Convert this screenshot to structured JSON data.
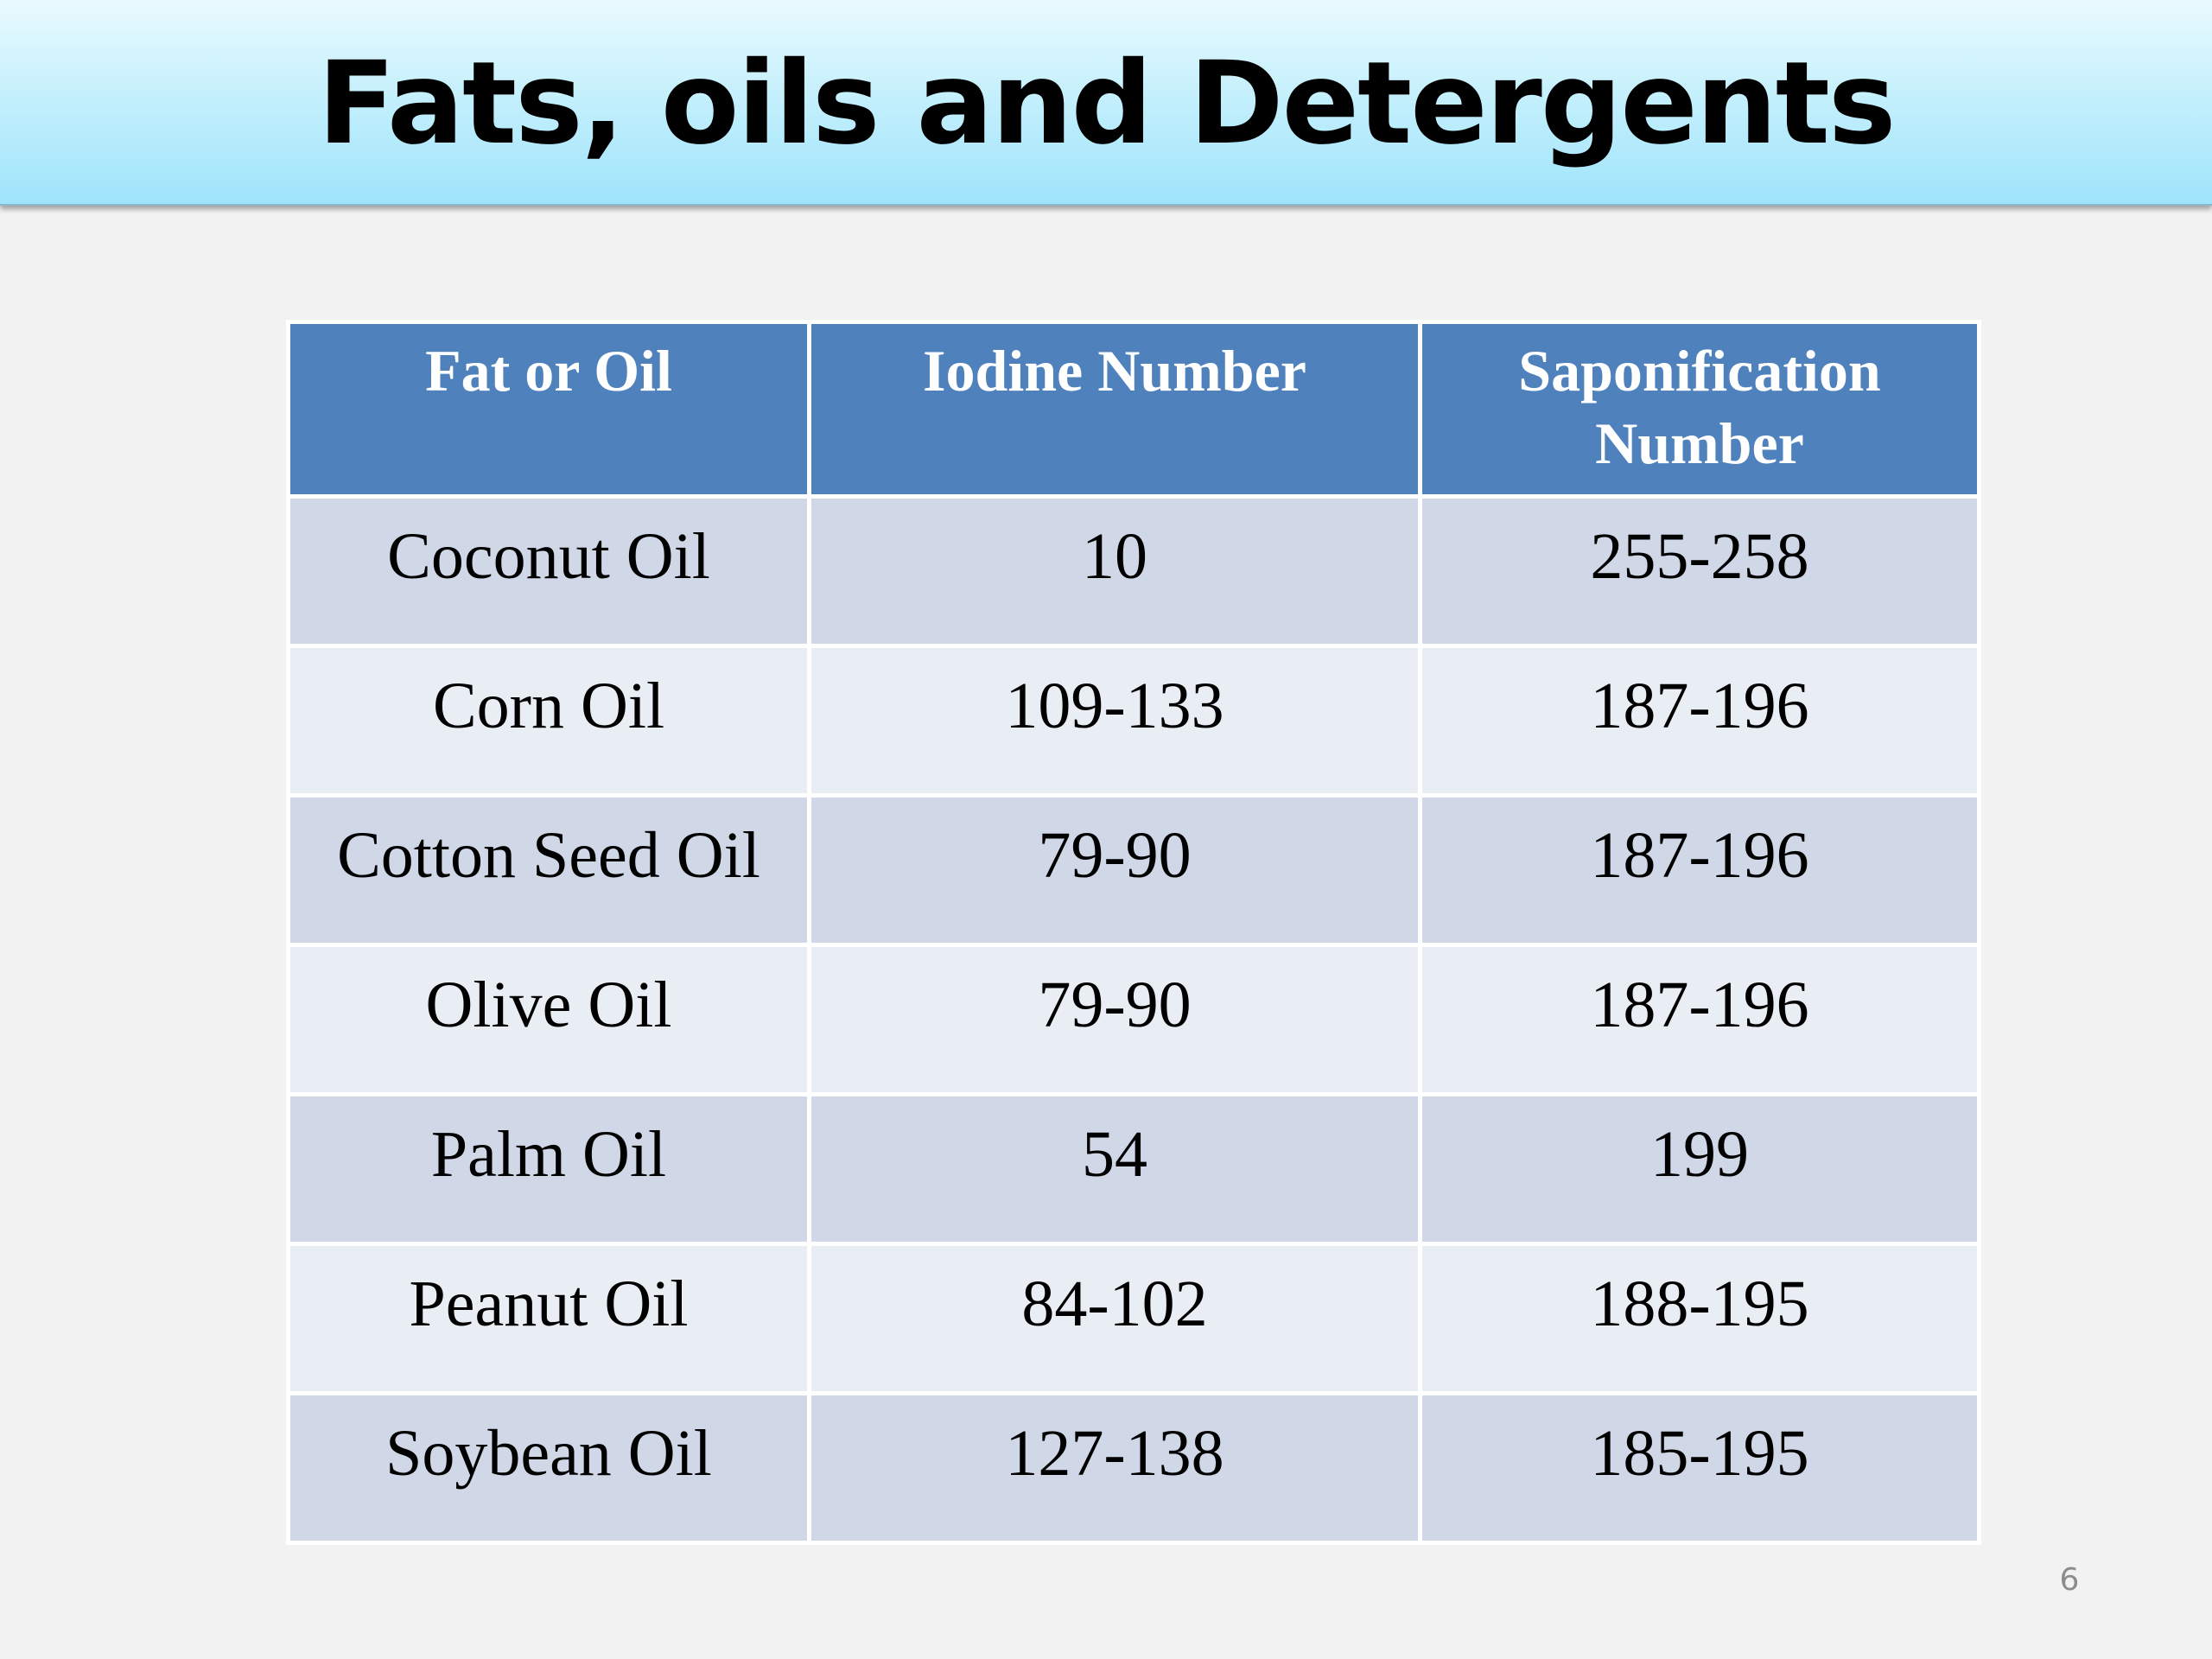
{
  "header": {
    "title": "Fats, oils and Detergents"
  },
  "table": {
    "columns": [
      "Fat or Oil",
      "Iodine Number",
      "Saponification Number"
    ],
    "rows": [
      [
        "Coconut Oil",
        10,
        "255-258"
      ],
      [
        "Corn Oil",
        "109-133",
        "187-196"
      ],
      [
        "Cotton Seed Oil",
        "79-90",
        "187-196"
      ],
      [
        "Olive Oil",
        "79-90",
        "187-196"
      ],
      [
        "Palm Oil",
        54,
        199
      ],
      [
        "Peanut Oil",
        "84-102",
        "188-195"
      ],
      [
        "Soybean Oil",
        "127-138",
        "185-195"
      ]
    ]
  },
  "page_number": 6
}
